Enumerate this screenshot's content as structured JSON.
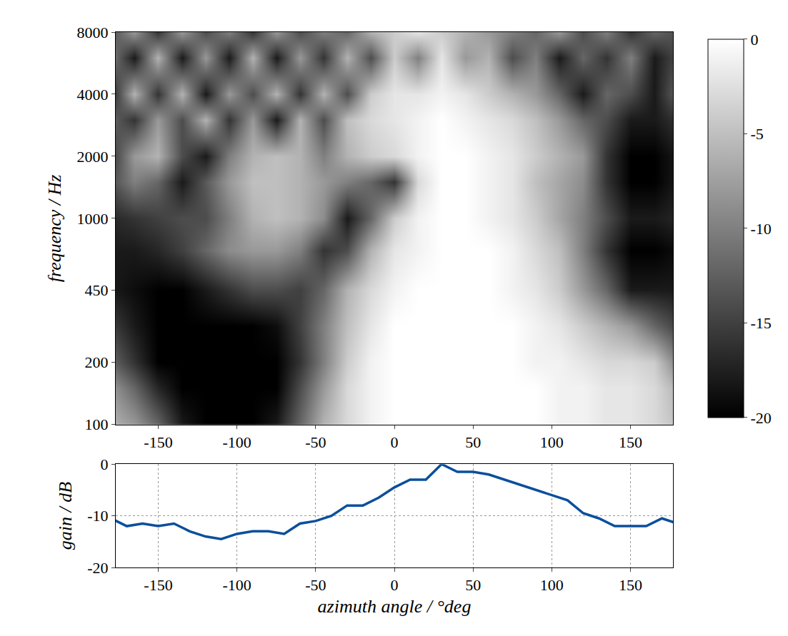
{
  "chart_data": [
    {
      "type": "heatmap",
      "y_label": "frequency / Hz",
      "log": "y",
      "grid": false,
      "color": "gray",
      "x": [
        -180,
        -165,
        -150,
        -135,
        -120,
        -105,
        -90,
        -75,
        -60,
        -45,
        -30,
        -15,
        0,
        15,
        30,
        45,
        60,
        75,
        90,
        105,
        120,
        135,
        150,
        165,
        180
      ],
      "y": [
        100,
        150,
        200,
        300,
        450,
        700,
        1000,
        1500,
        2000,
        3000,
        4000,
        6000,
        8000
      ],
      "z": [
        [
          -6,
          -8,
          -12,
          -18,
          -20,
          -20,
          -20,
          -18,
          -12,
          -6,
          -3,
          -1,
          0,
          0,
          0,
          0,
          0,
          0,
          0,
          -1,
          -1,
          -2,
          -2,
          -3,
          -5
        ],
        [
          -8,
          -12,
          -17,
          -20,
          -20,
          -20,
          -20,
          -20,
          -14,
          -8,
          -3,
          -1,
          0,
          0,
          0,
          0,
          0,
          0,
          0,
          -1,
          -1,
          -2,
          -2,
          -3,
          -6
        ],
        [
          -12,
          -16,
          -20,
          -20,
          -20,
          -20,
          -20,
          -20,
          -16,
          -10,
          -4,
          -1,
          0,
          0,
          0,
          0,
          0,
          0,
          -1,
          -1,
          -2,
          -3,
          -3,
          -4,
          -10
        ],
        [
          -15,
          -18,
          -20,
          -20,
          -20,
          -20,
          -20,
          -19,
          -15,
          -10,
          -5,
          -2,
          0,
          0,
          0,
          0,
          0,
          0,
          -1,
          -2,
          -4,
          -6,
          -8,
          -12,
          -15
        ],
        [
          -18,
          -19,
          -20,
          -20,
          -18,
          -16,
          -14,
          -14,
          -15,
          -12,
          -6,
          -3,
          -1,
          0,
          0,
          0,
          0,
          -1,
          -2,
          -4,
          -8,
          -12,
          -18,
          -18,
          -18
        ],
        [
          -18,
          -18,
          -17,
          -15,
          -12,
          -9,
          -8,
          -8,
          -10,
          -16,
          -14,
          -6,
          -2,
          -1,
          0,
          0,
          0,
          -1,
          -3,
          -5,
          -10,
          -16,
          -20,
          -20,
          -19
        ],
        [
          -17,
          -16,
          -15,
          -14,
          -14,
          -10,
          -6,
          -5,
          -6,
          -9,
          -18,
          -12,
          -4,
          -1,
          0,
          0,
          -1,
          -2,
          -4,
          -7,
          -10,
          -14,
          -18,
          -18,
          -17
        ],
        [
          -14,
          -10,
          -12,
          -18,
          -13,
          -8,
          -5,
          -5,
          -6,
          -8,
          -10,
          -12,
          -16,
          -3,
          0,
          0,
          -1,
          -2,
          -5,
          -7,
          -9,
          -16,
          -20,
          -20,
          -18
        ],
        [
          -16,
          -8,
          -6,
          -14,
          -18,
          -10,
          -6,
          -5,
          -6,
          -10,
          -6,
          -4,
          -3,
          -1,
          0,
          0,
          -1,
          -2,
          -4,
          -6,
          -8,
          -16,
          -20,
          -20,
          -18
        ],
        [
          -12,
          -16,
          -8,
          -14,
          -6,
          -16,
          -8,
          -18,
          -6,
          -14,
          -5,
          -3,
          -2,
          -1,
          0,
          -1,
          -2,
          -3,
          -5,
          -8,
          -12,
          -14,
          -18,
          -18,
          -16
        ],
        [
          -18,
          -6,
          -16,
          -6,
          -18,
          -8,
          -14,
          -6,
          -16,
          -6,
          -14,
          -4,
          -2,
          -2,
          -1,
          -2,
          -4,
          -6,
          -8,
          -12,
          -18,
          -12,
          -14,
          -18,
          -12
        ],
        [
          -10,
          -18,
          -6,
          -18,
          -8,
          -18,
          -6,
          -18,
          -8,
          -16,
          -6,
          -14,
          -4,
          -10,
          -2,
          -8,
          -6,
          -14,
          -10,
          -18,
          -12,
          -16,
          -10,
          -18,
          -14
        ],
        [
          -14,
          -8,
          -16,
          -8,
          -14,
          -10,
          -16,
          -8,
          -14,
          -10,
          -12,
          -6,
          -4,
          -2,
          -4,
          -6,
          -8,
          -10,
          -12,
          -8,
          -14,
          -10,
          -16,
          -12,
          -14
        ]
      ],
      "xlim": [
        -177,
        177
      ],
      "xticks": [
        -150,
        -100,
        -50,
        0,
        50,
        100,
        150
      ],
      "ylim": [
        100,
        8000
      ],
      "yticks": [
        100,
        200,
        450,
        1000,
        2000,
        4000,
        8000
      ],
      "zlim": [
        -20,
        0
      ],
      "zticks": [
        0,
        -5,
        -10,
        -15,
        -20
      ]
    },
    {
      "type": "line",
      "x_label": "azimuth angle / °deg",
      "y_label": "gain / dB",
      "grid": true,
      "color": "#0b4f9c",
      "x": [
        -180,
        -170,
        -160,
        -150,
        -140,
        -130,
        -120,
        -110,
        -100,
        -90,
        -80,
        -70,
        -60,
        -50,
        -40,
        -30,
        -20,
        -10,
        0,
        10,
        20,
        30,
        40,
        50,
        60,
        70,
        80,
        90,
        100,
        110,
        120,
        130,
        140,
        150,
        160,
        170,
        180
      ],
      "values": [
        -10.5,
        -12,
        -11.5,
        -12,
        -11.5,
        -13,
        -14,
        -14.5,
        -13.5,
        -13,
        -13,
        -13.5,
        -11.5,
        -11,
        -10,
        -8,
        -8,
        -6.5,
        -4.5,
        -3,
        -3,
        0,
        -1.5,
        -1.5,
        -2,
        -3,
        -4,
        -5,
        -6,
        -7,
        -9.5,
        -10.5,
        -12,
        -12,
        -12,
        -10.5,
        -11.5
      ],
      "xlim": [
        -177,
        177
      ],
      "xticks": [
        -150,
        -100,
        -50,
        0,
        50,
        100,
        150
      ],
      "ylim": [
        -20,
        0
      ],
      "yticks": [
        -20,
        -10,
        0
      ]
    }
  ]
}
